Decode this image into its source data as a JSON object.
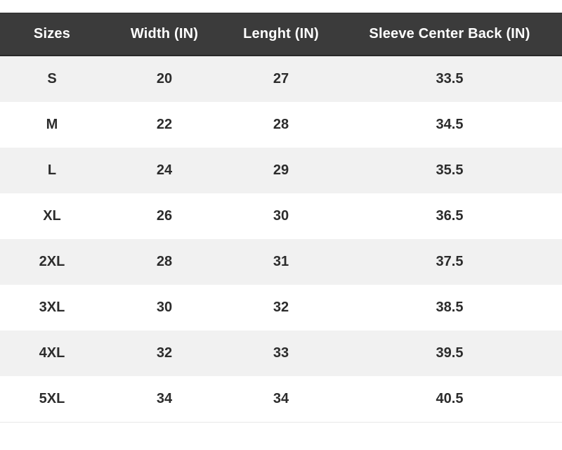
{
  "colors": {
    "header_bg": "#3b3b3b",
    "header_text": "#ffffff",
    "row_bg": "#ffffff",
    "row_alt_bg": "#f1f1f1",
    "cell_text": "#2c2c2c",
    "table_bottom_divider": "#e8e8e8"
  },
  "chart_data": {
    "type": "table",
    "columns": [
      "Sizes",
      "Width (IN)",
      "Lenght (IN)",
      "Sleeve Center Back (IN)"
    ],
    "rows": [
      [
        "S",
        "20",
        "27",
        "33.5"
      ],
      [
        "M",
        "22",
        "28",
        "34.5"
      ],
      [
        "L",
        "24",
        "29",
        "35.5"
      ],
      [
        "XL",
        "26",
        "30",
        "36.5"
      ],
      [
        "2XL",
        "28",
        "31",
        "37.5"
      ],
      [
        "3XL",
        "30",
        "32",
        "38.5"
      ],
      [
        "4XL",
        "32",
        "33",
        "39.5"
      ],
      [
        "5XL",
        "34",
        "34",
        "40.5"
      ]
    ]
  }
}
